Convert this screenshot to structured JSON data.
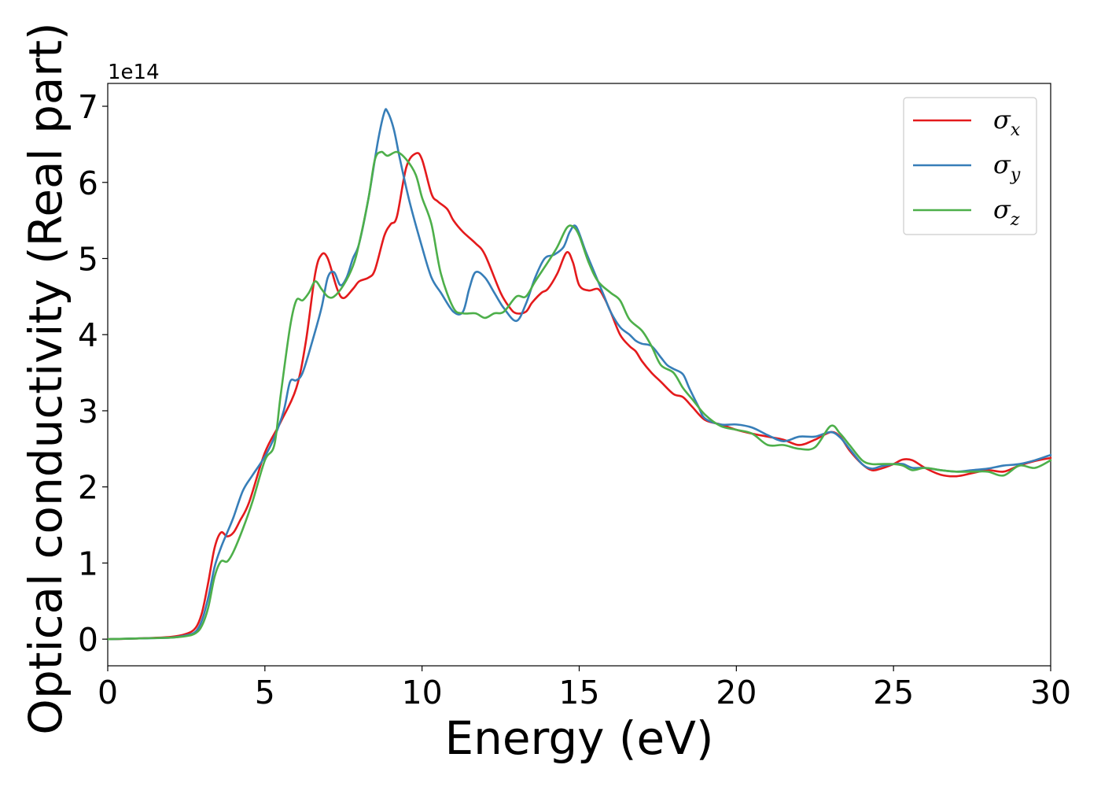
{
  "chart_data": {
    "type": "line",
    "xlabel": "Energy (eV)",
    "ylabel": "Optical conductivity (Real part)",
    "y_offset_label": "1e14",
    "xlim": [
      0,
      30
    ],
    "ylim": [
      -0.35,
      7.3
    ],
    "x_ticks": [
      0,
      5,
      10,
      15,
      20,
      25,
      30
    ],
    "x_tick_labels": [
      "0",
      "5",
      "10",
      "15",
      "20",
      "25",
      "30"
    ],
    "y_ticks": [
      0,
      1,
      2,
      3,
      4,
      5,
      6,
      7
    ],
    "y_tick_labels": [
      "0",
      "1",
      "2",
      "3",
      "4",
      "5",
      "6",
      "7"
    ],
    "grid": false,
    "legend_position": "top-right",
    "series": [
      {
        "name": "σx",
        "symbol": "σ",
        "subscript": "x",
        "color": "#e41a1c",
        "x": [
          0,
          1,
          2,
          2.5,
          2.8,
          3.0,
          3.2,
          3.4,
          3.6,
          3.8,
          4.0,
          4.2,
          4.5,
          5.0,
          5.5,
          6.0,
          6.3,
          6.6,
          6.8,
          7.0,
          7.3,
          7.5,
          7.8,
          8.0,
          8.3,
          8.5,
          8.8,
          9.0,
          9.2,
          9.5,
          9.8,
          10.0,
          10.3,
          10.5,
          10.8,
          11.0,
          11.3,
          11.7,
          12.0,
          12.5,
          12.8,
          13.0,
          13.3,
          13.5,
          13.8,
          14.0,
          14.3,
          14.6,
          14.8,
          15.0,
          15.3,
          15.6,
          15.8,
          16.0,
          16.3,
          16.6,
          16.8,
          17.0,
          17.3,
          17.6,
          18.0,
          18.3,
          18.6,
          19.0,
          19.5,
          20.0,
          20.5,
          21.0,
          21.5,
          22.0,
          22.5,
          23.0,
          23.3,
          23.6,
          24.0,
          24.3,
          24.6,
          25.0,
          25.3,
          25.6,
          26.0,
          26.5,
          27.0,
          27.5,
          28.0,
          28.5,
          29.0,
          29.5,
          30.0
        ],
        "y": [
          0.0,
          0.01,
          0.03,
          0.07,
          0.15,
          0.35,
          0.75,
          1.2,
          1.4,
          1.35,
          1.4,
          1.55,
          1.8,
          2.45,
          2.85,
          3.3,
          3.9,
          4.8,
          5.05,
          5.0,
          4.6,
          4.48,
          4.6,
          4.7,
          4.75,
          4.85,
          5.3,
          5.45,
          5.55,
          6.2,
          6.38,
          6.3,
          5.85,
          5.75,
          5.65,
          5.5,
          5.35,
          5.2,
          5.05,
          4.55,
          4.35,
          4.28,
          4.3,
          4.42,
          4.55,
          4.6,
          4.8,
          5.08,
          4.95,
          4.65,
          4.58,
          4.6,
          4.48,
          4.3,
          4.0,
          3.85,
          3.78,
          3.65,
          3.5,
          3.38,
          3.22,
          3.18,
          3.05,
          2.88,
          2.82,
          2.75,
          2.7,
          2.66,
          2.62,
          2.55,
          2.62,
          2.72,
          2.66,
          2.48,
          2.3,
          2.22,
          2.24,
          2.3,
          2.36,
          2.35,
          2.25,
          2.16,
          2.14,
          2.18,
          2.22,
          2.2,
          2.28,
          2.34,
          2.38
        ]
      },
      {
        "name": "σy",
        "symbol": "σ",
        "subscript": "y",
        "color": "#377eb8",
        "x": [
          0,
          1,
          2,
          2.5,
          2.8,
          3.0,
          3.2,
          3.4,
          3.6,
          3.8,
          4.0,
          4.3,
          4.6,
          5.0,
          5.3,
          5.6,
          5.8,
          6.0,
          6.2,
          6.5,
          6.8,
          7.0,
          7.2,
          7.4,
          7.6,
          7.8,
          8.0,
          8.3,
          8.6,
          8.8,
          8.9,
          9.1,
          9.3,
          9.6,
          10.0,
          10.3,
          10.6,
          11.0,
          11.3,
          11.5,
          11.7,
          12.0,
          12.3,
          12.6,
          13.0,
          13.3,
          13.6,
          13.9,
          14.2,
          14.5,
          14.7,
          14.9,
          15.2,
          15.5,
          15.8,
          16.0,
          16.3,
          16.6,
          16.8,
          17.0,
          17.3,
          17.6,
          17.8,
          18.0,
          18.3,
          18.5,
          18.8,
          19.0,
          19.5,
          20.0,
          20.5,
          21.0,
          21.5,
          22.0,
          22.5,
          23.0,
          23.3,
          23.6,
          24.0,
          24.3,
          24.6,
          25.0,
          25.3,
          25.6,
          26.0,
          26.5,
          27.0,
          27.5,
          28.0,
          28.5,
          29.0,
          29.5,
          30.0
        ],
        "y": [
          0.0,
          0.01,
          0.02,
          0.05,
          0.1,
          0.25,
          0.55,
          0.95,
          1.2,
          1.4,
          1.6,
          1.95,
          2.15,
          2.4,
          2.65,
          3.0,
          3.38,
          3.4,
          3.5,
          3.9,
          4.35,
          4.75,
          4.82,
          4.65,
          4.75,
          5.0,
          5.2,
          5.8,
          6.55,
          6.92,
          6.93,
          6.7,
          6.3,
          5.75,
          5.15,
          4.75,
          4.55,
          4.3,
          4.3,
          4.6,
          4.82,
          4.75,
          4.55,
          4.35,
          4.18,
          4.4,
          4.75,
          5.0,
          5.05,
          5.15,
          5.35,
          5.42,
          5.1,
          4.8,
          4.5,
          4.3,
          4.1,
          4.0,
          3.92,
          3.88,
          3.85,
          3.7,
          3.6,
          3.55,
          3.48,
          3.3,
          3.05,
          2.9,
          2.82,
          2.82,
          2.78,
          2.68,
          2.6,
          2.66,
          2.66,
          2.72,
          2.65,
          2.5,
          2.3,
          2.24,
          2.27,
          2.3,
          2.3,
          2.25,
          2.25,
          2.22,
          2.2,
          2.22,
          2.24,
          2.28,
          2.3,
          2.35,
          2.42
        ]
      },
      {
        "name": "σz",
        "symbol": "σ",
        "subscript": "z",
        "color": "#4daf4a",
        "x": [
          0,
          1,
          2,
          2.5,
          2.8,
          3.0,
          3.2,
          3.4,
          3.6,
          3.8,
          4.0,
          4.3,
          4.6,
          5.0,
          5.3,
          5.5,
          5.8,
          6.0,
          6.2,
          6.4,
          6.6,
          6.8,
          7.0,
          7.2,
          7.5,
          7.8,
          8.0,
          8.3,
          8.5,
          8.7,
          8.9,
          9.2,
          9.5,
          9.8,
          10.0,
          10.3,
          10.6,
          11.0,
          11.3,
          11.7,
          12.0,
          12.3,
          12.6,
          13.0,
          13.3,
          13.6,
          14.0,
          14.3,
          14.6,
          14.8,
          15.0,
          15.3,
          15.6,
          16.0,
          16.3,
          16.6,
          17.0,
          17.3,
          17.6,
          18.0,
          18.3,
          18.6,
          19.0,
          19.5,
          20.0,
          20.5,
          21.0,
          21.5,
          22.0,
          22.5,
          23.0,
          23.3,
          23.6,
          24.0,
          24.3,
          24.6,
          25.0,
          25.3,
          25.6,
          26.0,
          26.5,
          27.0,
          27.5,
          28.0,
          28.5,
          29.0,
          29.5,
          30.0
        ],
        "y": [
          0.0,
          0.01,
          0.02,
          0.04,
          0.08,
          0.18,
          0.42,
          0.82,
          1.02,
          1.02,
          1.15,
          1.45,
          1.8,
          2.35,
          2.55,
          3.2,
          4.1,
          4.45,
          4.45,
          4.55,
          4.7,
          4.6,
          4.5,
          4.5,
          4.65,
          4.9,
          5.2,
          5.8,
          6.3,
          6.4,
          6.35,
          6.4,
          6.3,
          6.1,
          5.8,
          5.45,
          4.8,
          4.35,
          4.28,
          4.28,
          4.22,
          4.28,
          4.3,
          4.5,
          4.5,
          4.7,
          4.95,
          5.15,
          5.4,
          5.42,
          5.3,
          4.95,
          4.7,
          4.55,
          4.45,
          4.2,
          4.05,
          3.85,
          3.6,
          3.5,
          3.3,
          3.15,
          2.95,
          2.8,
          2.75,
          2.7,
          2.55,
          2.55,
          2.5,
          2.52,
          2.8,
          2.7,
          2.55,
          2.35,
          2.3,
          2.3,
          2.3,
          2.28,
          2.22,
          2.25,
          2.22,
          2.2,
          2.2,
          2.2,
          2.15,
          2.28,
          2.25,
          2.35
        ]
      }
    ]
  }
}
